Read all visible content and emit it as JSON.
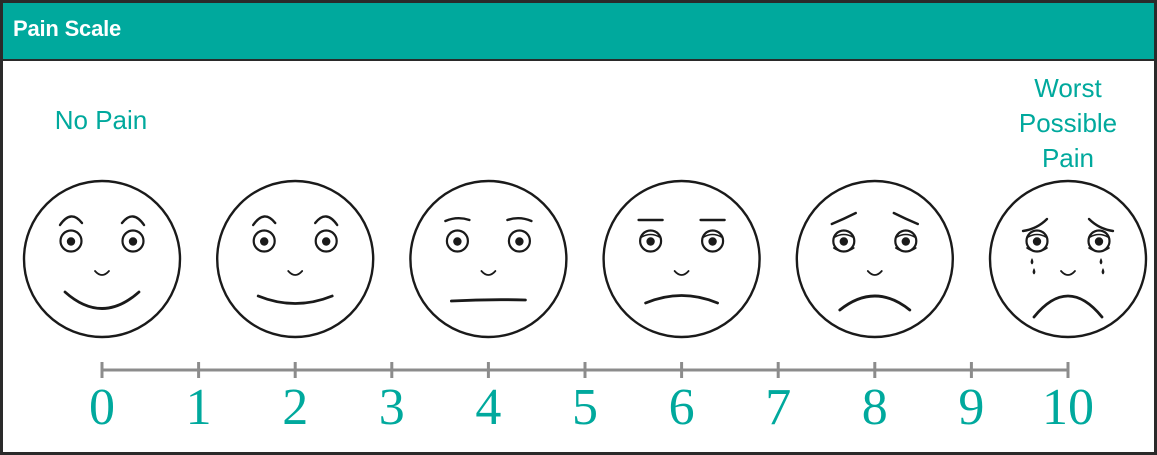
{
  "header": {
    "title": "Pain Scale"
  },
  "labels": {
    "left": "No Pain",
    "right_line1": "Worst",
    "right_line2": "Possible",
    "right_line3": "Pain"
  },
  "scale": {
    "min": 0,
    "max": 10,
    "numbers": [
      "0",
      "1",
      "2",
      "3",
      "4",
      "5",
      "6",
      "7",
      "8",
      "9",
      "10"
    ]
  },
  "faces": [
    {
      "value": 0,
      "icon": "smiling-face-icon"
    },
    {
      "value": 2,
      "icon": "slight-smile-face-icon"
    },
    {
      "value": 4,
      "icon": "neutral-face-icon"
    },
    {
      "value": 6,
      "icon": "frowning-face-icon"
    },
    {
      "value": 8,
      "icon": "sad-face-icon"
    },
    {
      "value": 10,
      "icon": "crying-face-icon"
    }
  ],
  "colors": {
    "accent": "#00a99d",
    "line": "#1a1a1a",
    "scale_line": "#8c8c8c"
  }
}
